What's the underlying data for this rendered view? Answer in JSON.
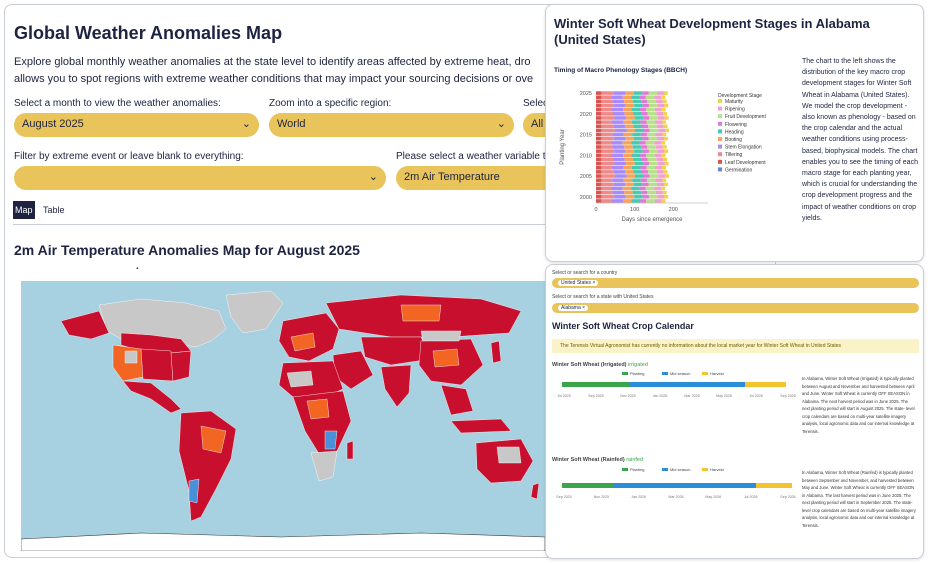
{
  "main": {
    "title": "Global Weather Anomalies Map",
    "intro_line1": "Explore global monthly weather anomalies at the state level to identify areas affected by extreme heat, dro",
    "intro_line2": "allows you to spot regions with extreme weather conditions that may impact your sourcing decisions or ove",
    "month_label": "Select a month to view the weather anomalies:",
    "month_value": "August 2025",
    "region_label": "Zoom into a specific region:",
    "region_value": "World",
    "third_label": "Selec",
    "third_value": "All",
    "event_label": "Filter by extreme event or leave blank to everything:",
    "event_value": "",
    "variable_label": "Please select a weather variable to",
    "variable_value": "2m Air Temperature",
    "tabs": [
      "Map",
      "Table"
    ],
    "map_title": "2m Air Temperature Anomalies Map for August 2025",
    "dot": "."
  },
  "colors": {
    "accent": "#e8c45a",
    "navy": "#1d2340",
    "ocean": "#a7d1e1",
    "hot": "#c8102e",
    "warm": "#f26522",
    "cool": "#4a90d9",
    "land_na": "#c8c8c8"
  },
  "chart_panel": {
    "title": "Winter Soft Wheat Development Stages in Alabama (United States)",
    "description": "The chart to the left shows the distribution of the key macro crop development stages for Winter Soft Wheat in Alabama (United States). We model the crop development - also known as phenology - based on the crop calendar and the actual weather conditions using process-based, biophysical models. The chart enables you to see the timing of each macro stage for each planting year, which is crucial for understanding the crop development progress and the impact of weather conditions on crop yields."
  },
  "chart_data": {
    "type": "bar",
    "orientation": "horizontal-stacked",
    "title": "Timing of Macro Phenology Stages (BBCH)",
    "xlabel": "Days since emergence",
    "ylabel": "Planting Year",
    "x_ticks": [
      0,
      100,
      200
    ],
    "y_ticks": [
      2000,
      2005,
      2010,
      2015,
      2020,
      2025
    ],
    "xlim": [
      0,
      290
    ],
    "legend_title": "Development Stage",
    "stages": [
      {
        "name": "Maturity",
        "color": "#f2d24a",
        "days": 10
      },
      {
        "name": "Ripening",
        "color": "#f0a0d0",
        "days": 18
      },
      {
        "name": "Fruit Development",
        "color": "#b7e08a",
        "days": 22
      },
      {
        "name": "Flowering",
        "color": "#e07ad6",
        "days": 16
      },
      {
        "name": "Heading",
        "color": "#48c9b0",
        "days": 22
      },
      {
        "name": "Booting",
        "color": "#f7a35c",
        "days": 22
      },
      {
        "name": "Stem Elongation",
        "color": "#a78bfa",
        "days": 30
      },
      {
        "name": "Tillering",
        "color": "#f08a8a",
        "days": 30
      },
      {
        "name": "Leaf Development",
        "color": "#d9534f",
        "days": 14
      },
      {
        "name": "Germination",
        "color": "#6b7fd7",
        "days": 0
      }
    ]
  },
  "calendar_panel": {
    "country_label": "Select or search for a country",
    "country_value": "United States",
    "state_label": "Select or search for a state with United States",
    "state_value": "Alabama",
    "title": "Winter Soft Wheat Crop Calendar",
    "notice": "The Terensis Virtual Agronomist has currently no information about the local market year for Winter Soft Wheat in United States",
    "legend": [
      "Planting",
      "Mid season",
      "Harvest"
    ],
    "irrigated": {
      "title": "Winter Soft Wheat (Irrigated)",
      "tag": "irrigated",
      "months": [
        "Jul 2025",
        "Sep 2025",
        "Nov 2025",
        "Jan 2026",
        "Mar 2026",
        "May 2026",
        "Jul 2026",
        "Sep 2026"
      ],
      "text": "In Alabama, Winter Soft Wheat (Irrigated) is typically planted between August and November and harvested between April and June. Winter Soft Wheat is currently OFF SEASON in Alabama. The next harvest period was in June 2025. The next planting period will start in August 2025. The state- level crop calendars are based on multi-year satellite imagery analysis, local agronomic data and our internal knowledge at Terensis."
    },
    "rainfed": {
      "title": "Winter Soft Wheat (Rainfed)",
      "tag": "rainfed",
      "months": [
        "Sep 2025",
        "Nov 2025",
        "Jan 2026",
        "Mar 2026",
        "May 2026",
        "Jul 2026",
        "Sep 2026"
      ],
      "text": "In Alabama, Winter Soft Wheat (Rainfed) is typically planted between September and November, and harvested between May and June. Winter Soft Wheat is currently OFF SEASON in Alabama. The last harvest period was in June 2025. The next planting period will start in September 2025. The state-level crop calendars are based on multi-year satellite imagery analysis, local agronomic data and our internal knowledge at Terensis."
    }
  }
}
